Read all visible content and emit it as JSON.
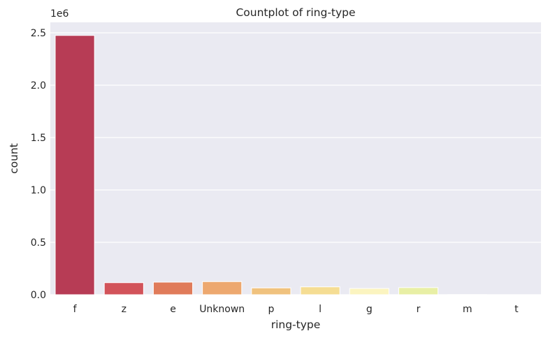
{
  "chart_data": {
    "type": "bar",
    "title": "Countplot of ring-type",
    "xlabel": "ring-type",
    "ylabel": "count",
    "y_offset_label": "1e6",
    "categories": [
      "f",
      "z",
      "e",
      "Unknown",
      "p",
      "l",
      "g",
      "r",
      "m",
      "t"
    ],
    "values": [
      2475000,
      115000,
      120000,
      125000,
      65000,
      75000,
      60000,
      68000,
      1000,
      500
    ],
    "ylim": [
      0,
      2600000
    ],
    "yticks": [
      0,
      500000,
      1000000,
      1500000,
      2000000,
      2500000
    ],
    "ytick_labels": [
      "0.0",
      "0.5",
      "1.0",
      "1.5",
      "2.0",
      "2.5"
    ],
    "colors": [
      "#b73c55",
      "#d2535a",
      "#e07b5a",
      "#eda86f",
      "#f0c27e",
      "#f5dd93",
      "#fbf4c0",
      "#e8efa5",
      "#b6dca6",
      "#7ec2a3"
    ],
    "grid": true,
    "background": "#eaeaf2"
  }
}
